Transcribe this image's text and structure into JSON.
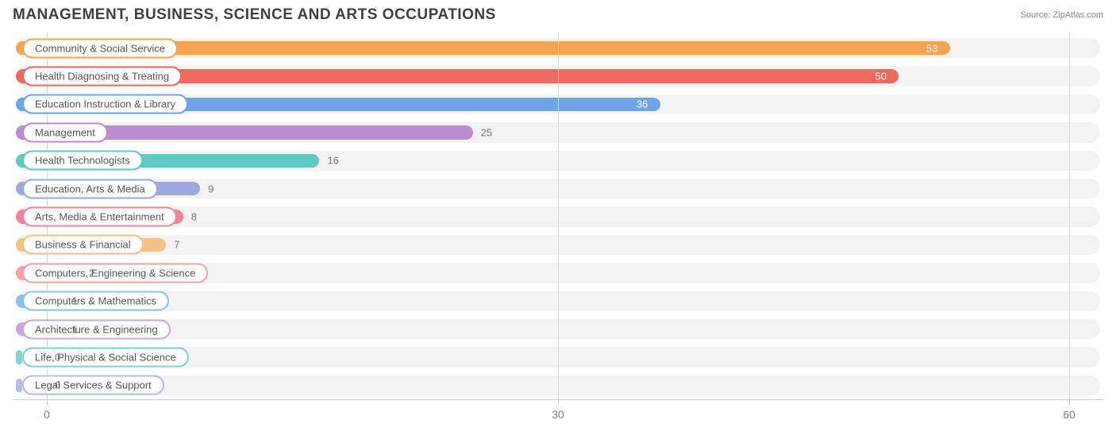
{
  "title": "MANAGEMENT, BUSINESS, SCIENCE AND ARTS OCCUPATIONS",
  "source_prefix": "Source: ",
  "source_name": "ZipAtlas.com",
  "chart": {
    "type": "bar-horizontal",
    "xmin": -2,
    "xmax": 62,
    "ticks": [
      0,
      30,
      60
    ],
    "track_color": "#f3f3f3",
    "grid_color": "#d9d9d9",
    "background_color": "#ffffff",
    "label_fontsize": 13,
    "tick_fontsize": 14,
    "rows": [
      {
        "label": "Community & Social Service",
        "value": 53,
        "color": "#f5a551"
      },
      {
        "label": "Health Diagnosing & Treating",
        "value": 50,
        "color": "#ed6a5e"
      },
      {
        "label": "Education Instruction & Library",
        "value": 36,
        "color": "#6ca6e8"
      },
      {
        "label": "Management",
        "value": 25,
        "color": "#bb8cce"
      },
      {
        "label": "Health Technologists",
        "value": 16,
        "color": "#62c8c3"
      },
      {
        "label": "Education, Arts & Media",
        "value": 9,
        "color": "#9fa8dc"
      },
      {
        "label": "Arts, Media & Entertainment",
        "value": 8,
        "color": "#f1839b"
      },
      {
        "label": "Business & Financial",
        "value": 7,
        "color": "#f5c283"
      },
      {
        "label": "Computers, Engineering & Science",
        "value": 2,
        "color": "#f3a5a5"
      },
      {
        "label": "Computers & Mathematics",
        "value": 1,
        "color": "#8ac4e8"
      },
      {
        "label": "Architecture & Engineering",
        "value": 1,
        "color": "#c9a8d8"
      },
      {
        "label": "Life, Physical & Social Science",
        "value": 0,
        "color": "#80d4cd"
      },
      {
        "label": "Legal Services & Support",
        "value": 0,
        "color": "#b6bce4"
      }
    ]
  }
}
